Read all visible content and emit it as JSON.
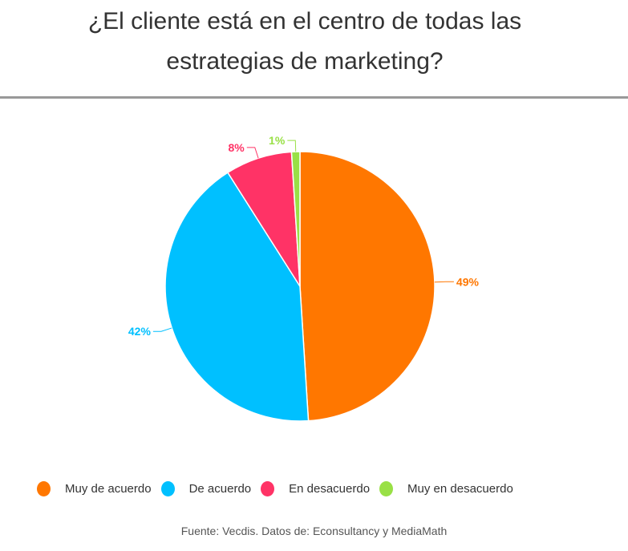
{
  "chart_data": {
    "type": "pie",
    "title": "¿El cliente está en el centro de todas las estrategias de marketing?",
    "title_lines": [
      "¿El cliente está en el centro de todas las",
      "estrategias de marketing?"
    ],
    "series": [
      {
        "name": "Muy de acuerdo",
        "value": 49,
        "label": "49%",
        "color": "#FF7700"
      },
      {
        "name": "De acuerdo",
        "value": 42,
        "label": "42%",
        "color": "#00C0FF"
      },
      {
        "name": "En desacuerdo",
        "value": 8,
        "label": "8%",
        "color": "#FF3366"
      },
      {
        "name": "Muy en desacuerdo",
        "value": 1,
        "label": "1%",
        "color": "#99E046"
      }
    ],
    "legend_position": "bottom",
    "source": "Fuente: Vecdis. Datos de: Econsultancy y MediaMath"
  }
}
